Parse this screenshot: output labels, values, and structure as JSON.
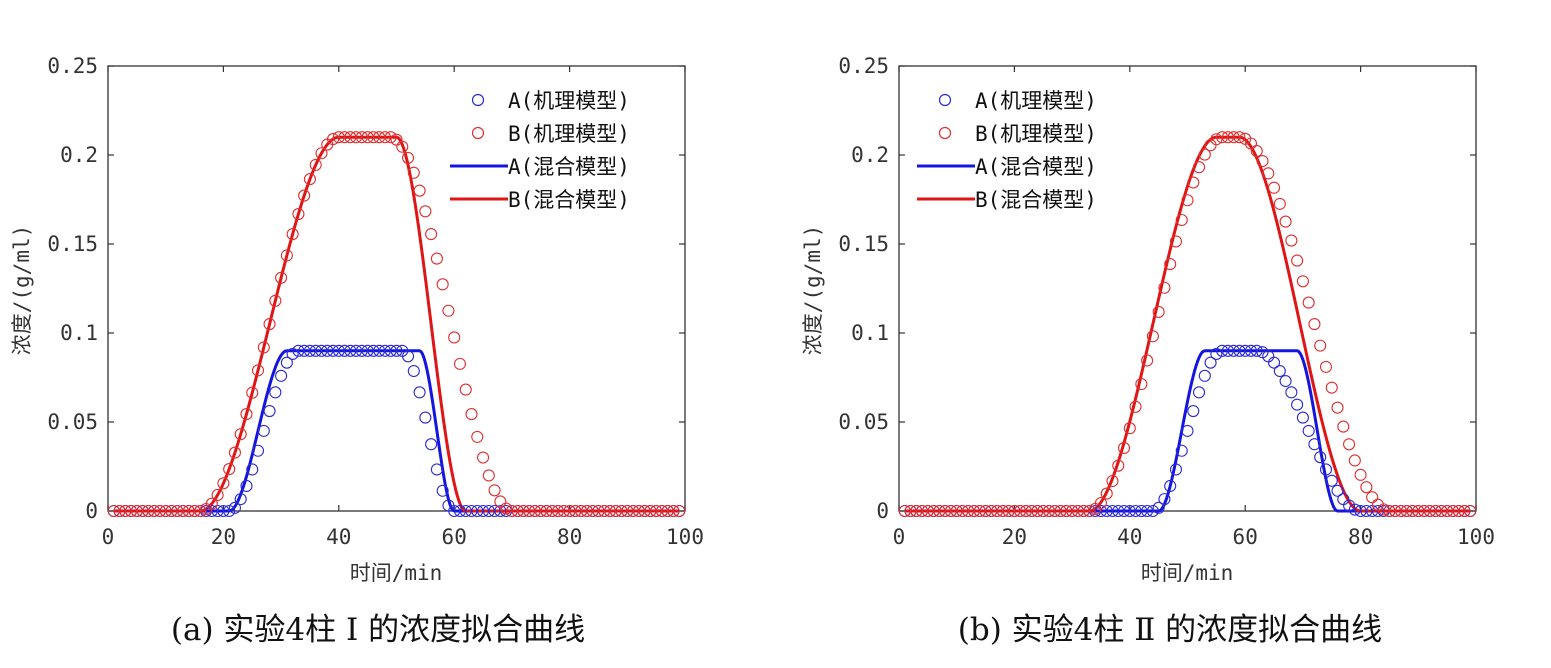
{
  "chart_data": [
    {
      "type": "line",
      "caption": "(a) 实验4柱 Ⅰ 的浓度拟合曲线",
      "xlabel": "时间/min",
      "ylabel": "浓度/(g/ml)",
      "xlim": [
        0,
        100
      ],
      "ylim": [
        0,
        0.25
      ],
      "xticks": [
        "0",
        "20",
        "40",
        "60",
        "80",
        "100"
      ],
      "yticks": [
        "0",
        "0.05",
        "0.1",
        "0.15",
        "0.2",
        "0.25"
      ],
      "grid": false,
      "legend_position": "top-right",
      "series": [
        {
          "name": "A(机理模型)",
          "style": "marker",
          "color": "#2b2bd6",
          "x_range": [
            1,
            99
          ],
          "profile": {
            "rise_start": 21,
            "rise_end": 33,
            "plateau": 0.09,
            "peak_end": 51,
            "fall_end": 60,
            "tail": 0.0
          }
        },
        {
          "name": "B(机理模型)",
          "style": "marker",
          "color": "#e03030",
          "x_range": [
            1,
            99
          ],
          "profile": {
            "rise_start": 16,
            "rise_end": 40,
            "plateau": 0.21,
            "peak_end": 49,
            "fall_end": 70,
            "tail": 0.0
          }
        },
        {
          "name": "A(混合模型)",
          "style": "line",
          "color": "#1515e0",
          "x_range": [
            1,
            99
          ],
          "profile": {
            "rise_start": 21,
            "rise_end": 31,
            "plateau": 0.09,
            "peak_end": 54,
            "fall_end": 60,
            "tail": 0.0
          }
        },
        {
          "name": "B(混合模型)",
          "style": "line",
          "color": "#e01515",
          "x_range": [
            1,
            99
          ],
          "profile": {
            "rise_start": 16,
            "rise_end": 40,
            "plateau": 0.21,
            "peak_end": 50,
            "fall_end": 62,
            "tail": 0.0
          }
        }
      ]
    },
    {
      "type": "line",
      "caption": "(b) 实验4柱 Ⅱ 的浓度拟合曲线",
      "xlabel": "时间/min",
      "ylabel": "浓度/(g/ml)",
      "xlim": [
        0,
        100
      ],
      "ylim": [
        0,
        0.25
      ],
      "xticks": [
        "0",
        "20",
        "40",
        "60",
        "80",
        "100"
      ],
      "yticks": [
        "0",
        "0.05",
        "0.1",
        "0.15",
        "0.2",
        "0.25"
      ],
      "grid": false,
      "legend_position": "top-left",
      "series": [
        {
          "name": "A(机理模型)",
          "style": "marker",
          "color": "#2b2bd6",
          "x_range": [
            1,
            99
          ],
          "profile": {
            "rise_start": 44,
            "rise_end": 56,
            "plateau": 0.09,
            "peak_end": 62,
            "fall_end": 80,
            "tail": 0.0
          }
        },
        {
          "name": "B(机理模型)",
          "style": "marker",
          "color": "#e03030",
          "x_range": [
            1,
            99
          ],
          "profile": {
            "rise_start": 33,
            "rise_end": 56,
            "plateau": 0.21,
            "peak_end": 59,
            "fall_end": 85,
            "tail": 0.0
          }
        },
        {
          "name": "A(混合模型)",
          "style": "line",
          "color": "#1515e0",
          "x_range": [
            1,
            99
          ],
          "profile": {
            "rise_start": 45,
            "rise_end": 53,
            "plateau": 0.09,
            "peak_end": 69,
            "fall_end": 76,
            "tail": 0.0
          }
        },
        {
          "name": "B(混合模型)",
          "style": "line",
          "color": "#e01515",
          "x_range": [
            1,
            99
          ],
          "profile": {
            "rise_start": 33,
            "rise_end": 55,
            "plateau": 0.21,
            "peak_end": 59,
            "fall_end": 80,
            "tail": 0.0
          }
        }
      ]
    }
  ]
}
